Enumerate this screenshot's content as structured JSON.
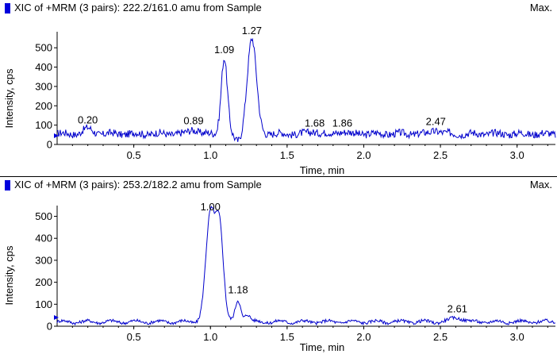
{
  "colors": {
    "trace": "#0000cc",
    "marker": "#0000dd",
    "axis": "#000000"
  },
  "panels": [
    {
      "title": "XIC of +MRM (3 pairs): 222.2/161.0 amu from Sample",
      "max_label": "Max.",
      "ylabel": "Intensity, cps",
      "xlabel": "Time, min",
      "chart_data": {
        "type": "line",
        "xlim": [
          0.0,
          3.25
        ],
        "ylim": [
          0,
          550
        ],
        "x_ticks": [
          0.5,
          1.0,
          1.5,
          2.0,
          2.5,
          3.0
        ],
        "x_tick_labels": [
          "0.5",
          "1.0",
          "1.5",
          "2.0",
          "2.5",
          "3.0"
        ],
        "y_ticks": [
          0,
          100,
          200,
          300,
          400,
          500
        ],
        "y_tick_labels": [
          "0",
          "100",
          "200",
          "300",
          "400",
          "500"
        ],
        "baseline": 55,
        "peaks": [
          {
            "x": 0.2,
            "y": 85,
            "width": 0.03,
            "label": "0.20"
          },
          {
            "x": 0.89,
            "y": 80,
            "width": 0.03,
            "label": "0.89"
          },
          {
            "x": 1.09,
            "y": 448,
            "width": 0.02,
            "label": "1.09"
          },
          {
            "x": 1.27,
            "y": 545,
            "width": 0.03,
            "label": "1.27"
          },
          {
            "x": 1.68,
            "y": 68,
            "width": 0.03,
            "label": "1.68"
          },
          {
            "x": 1.86,
            "y": 68,
            "width": 0.03,
            "label": "1.86"
          },
          {
            "x": 2.47,
            "y": 75,
            "width": 0.03,
            "label": "2.47"
          }
        ],
        "dips": [
          {
            "x": 1.18,
            "y": 15
          }
        ]
      }
    },
    {
      "title": "XIC of +MRM (3 pairs): 253.2/182.2 amu from Sample",
      "max_label": "Max.",
      "ylabel": "Intensity, cps",
      "xlabel": "Time, min",
      "chart_data": {
        "type": "line",
        "xlim": [
          0.0,
          3.25
        ],
        "ylim": [
          0,
          520
        ],
        "x_ticks": [
          0.5,
          1.0,
          1.5,
          2.0,
          2.5,
          3.0
        ],
        "x_tick_labels": [
          "0.5",
          "1.0",
          "1.5",
          "2.0",
          "2.5",
          "3.0"
        ],
        "y_ticks": [
          0,
          100,
          200,
          300,
          400,
          500
        ],
        "y_tick_labels": [
          "0",
          "100",
          "200",
          "300",
          "400",
          "500"
        ],
        "baseline": 20,
        "peaks": [
          {
            "x": 1.0,
            "y": 505,
            "width": 0.03,
            "label": "1.00"
          },
          {
            "x": 1.06,
            "y": 440,
            "width": 0.025,
            "label": ""
          },
          {
            "x": 1.18,
            "y": 128,
            "width": 0.018,
            "label": "1.18"
          },
          {
            "x": 1.24,
            "y": 60,
            "width": 0.018,
            "label": ""
          },
          {
            "x": 2.61,
            "y": 42,
            "width": 0.04,
            "label": "2.61"
          }
        ],
        "dips": []
      }
    }
  ]
}
